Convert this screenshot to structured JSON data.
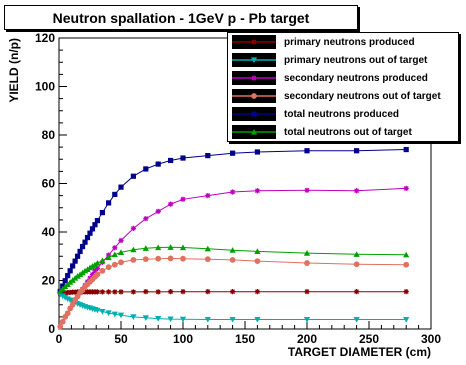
{
  "chart_data": {
    "type": "line",
    "title": "Neutron spallation - 1GeV p - Pb target",
    "xlabel": "TARGET DIAMETER (cm)",
    "ylabel": "YIELD (n/p)",
    "xlim": [
      0,
      300
    ],
    "ylim": [
      0,
      120
    ],
    "xticks": [
      "0",
      "50",
      "100",
      "150",
      "200",
      "250",
      "300"
    ],
    "yticks": [
      "0",
      "20",
      "40",
      "60",
      "80",
      "100",
      "120"
    ],
    "grid": false,
    "legend_position": "top-right",
    "series": [
      {
        "name": "primary neutrons produced",
        "color": "#8b0000",
        "marker": "star",
        "x": [
          1,
          3,
          5,
          7,
          9,
          11,
          13,
          15,
          17,
          19,
          21,
          23,
          25,
          27,
          29,
          31,
          35,
          40,
          45,
          50,
          60,
          70,
          80,
          90,
          100,
          120,
          140,
          160,
          200,
          240,
          280
        ],
        "y": [
          14.5,
          14.7,
          14.9,
          15.0,
          15.1,
          15.2,
          15.2,
          15.3,
          15.3,
          15.3,
          15.3,
          15.3,
          15.3,
          15.3,
          15.3,
          15.3,
          15.3,
          15.3,
          15.3,
          15.3,
          15.3,
          15.4,
          15.3,
          15.4,
          15.4,
          15.4,
          15.4,
          15.4,
          15.4,
          15.4,
          15.4
        ]
      },
      {
        "name": "primary neutrons out of target",
        "color": "#00b0b0",
        "marker": "triangle-down",
        "x": [
          1,
          3,
          5,
          7,
          9,
          11,
          13,
          15,
          17,
          19,
          21,
          23,
          25,
          27,
          29,
          31,
          35,
          40,
          45,
          50,
          60,
          70,
          80,
          90,
          100,
          120,
          140,
          160,
          200,
          240,
          280
        ],
        "y": [
          14.3,
          13.6,
          13.0,
          12.4,
          11.9,
          11.4,
          10.9,
          10.4,
          10.0,
          9.6,
          9.2,
          8.9,
          8.6,
          8.3,
          8.0,
          7.7,
          7.2,
          6.6,
          6.1,
          5.7,
          5.0,
          4.6,
          4.3,
          4.1,
          4.0,
          3.9,
          3.9,
          3.9,
          3.9,
          3.9,
          3.9
        ]
      },
      {
        "name": "secondary neutrons produced",
        "color": "#c000c0",
        "marker": "star",
        "x": [
          1,
          3,
          5,
          7,
          9,
          11,
          13,
          15,
          17,
          19,
          21,
          23,
          25,
          27,
          29,
          31,
          35,
          40,
          45,
          50,
          60,
          70,
          80,
          90,
          100,
          120,
          140,
          160,
          200,
          240,
          280
        ],
        "y": [
          1,
          3,
          5,
          6.5,
          8.5,
          10,
          12,
          13.5,
          15,
          16.5,
          18,
          19.5,
          21,
          22.5,
          24,
          25,
          27.5,
          30.5,
          33.5,
          36.5,
          41.5,
          45.5,
          48.5,
          51.5,
          53.5,
          55,
          56.5,
          57,
          57.2,
          57,
          58
        ]
      },
      {
        "name": "secondary neutrons out of target",
        "color": "#e07060",
        "marker": "circle",
        "x": [
          1,
          3,
          5,
          7,
          9,
          11,
          13,
          15,
          17,
          19,
          21,
          23,
          25,
          27,
          29,
          31,
          35,
          40,
          45,
          50,
          60,
          70,
          80,
          90,
          100,
          120,
          140,
          160,
          200,
          240,
          280
        ],
        "y": [
          1,
          3,
          5,
          6.5,
          8.5,
          10,
          12,
          13.5,
          15,
          16,
          17.5,
          18.5,
          19.5,
          20.5,
          21.5,
          22.5,
          24,
          25.5,
          26.5,
          27.5,
          28.5,
          28.8,
          29,
          29.1,
          29,
          28.8,
          28.5,
          28,
          27.2,
          26.7,
          26.5
        ]
      },
      {
        "name": "total neutrons produced",
        "color": "#00008b",
        "marker": "square",
        "x": [
          1,
          3,
          5,
          7,
          9,
          11,
          13,
          15,
          17,
          19,
          21,
          23,
          25,
          27,
          29,
          31,
          35,
          40,
          45,
          50,
          60,
          70,
          80,
          90,
          100,
          120,
          140,
          160,
          200,
          240,
          280
        ],
        "y": [
          15.5,
          17.7,
          19.9,
          22,
          24,
          26,
          28,
          30,
          32,
          34,
          35.8,
          37.7,
          39.5,
          41.3,
          43,
          44.7,
          48,
          52,
          55.5,
          58.5,
          63,
          66,
          68,
          69.5,
          70.5,
          71.5,
          72.5,
          73,
          73.5,
          73.5,
          74
        ]
      },
      {
        "name": "total neutrons out of target",
        "color": "#00a000",
        "marker": "triangle-up",
        "x": [
          1,
          3,
          5,
          7,
          9,
          11,
          13,
          15,
          17,
          19,
          21,
          23,
          25,
          27,
          29,
          31,
          35,
          40,
          45,
          50,
          60,
          70,
          80,
          90,
          100,
          120,
          140,
          160,
          200,
          240,
          280
        ],
        "y": [
          15.5,
          16.5,
          17.5,
          18.4,
          19.3,
          20.1,
          21,
          21.8,
          22.5,
          23.2,
          24,
          24.6,
          25.3,
          25.9,
          26.5,
          27.2,
          28.2,
          29.5,
          30.7,
          31.6,
          32.7,
          33.3,
          33.6,
          33.7,
          33.6,
          33.1,
          32.5,
          32,
          31.3,
          30.8,
          30.6
        ]
      }
    ]
  }
}
